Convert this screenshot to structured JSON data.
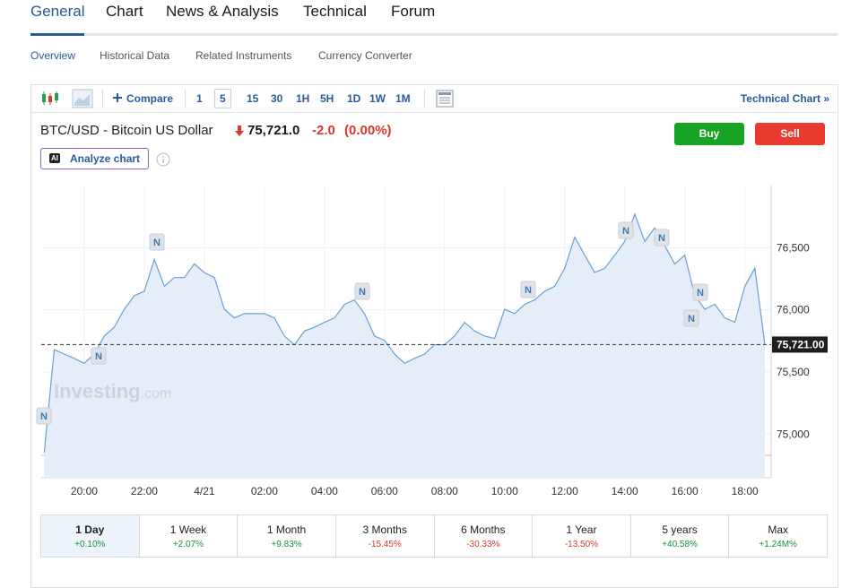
{
  "tabs": [
    "General",
    "Chart",
    "News & Analysis",
    "Technical",
    "Forum"
  ],
  "subtabs": [
    "Overview",
    "Historical Data",
    "Related Instruments",
    "Currency Converter"
  ],
  "toolbar": {
    "compare": "Compare",
    "intervals": [
      "1",
      "5",
      "15",
      "30",
      "1H",
      "5H",
      "1D",
      "1W",
      "1M"
    ],
    "technical_chart": "Technical Chart »"
  },
  "quote": {
    "name": "BTC/USD - Bitcoin US Dollar",
    "price": "75,721.0",
    "change": "-2.0",
    "change_pct": "(0.00%)"
  },
  "buttons": {
    "buy": "Buy",
    "sell": "Sell",
    "analyze": "Analyze chart",
    "ai_badge": "AI"
  },
  "chart_data": {
    "type": "line",
    "categories": [
      null,
      null,
      null,
      null,
      "20:00",
      null,
      null,
      null,
      null,
      null,
      "22:00",
      null,
      null,
      null,
      null,
      null,
      "4/21",
      null,
      null,
      null,
      null,
      null,
      "02:00",
      null,
      null,
      null,
      null,
      null,
      "04:00",
      null,
      null,
      null,
      null,
      null,
      "06:00",
      null,
      null,
      null,
      null,
      null,
      "08:00",
      null,
      null,
      null,
      null,
      null,
      "10:00",
      null,
      null,
      null,
      null,
      null,
      "12:00",
      null,
      null,
      null,
      null,
      null,
      "14:00",
      null,
      null,
      null,
      null,
      null,
      "16:00",
      null,
      null,
      null,
      null,
      null,
      "18:00",
      null,
      null
    ],
    "series": [
      {
        "color": "#6a9fd4",
        "values": [
          74850,
          75680,
          75645,
          75610,
          75570,
          75645,
          75790,
          75860,
          76005,
          76115,
          76150,
          76405,
          76190,
          76260,
          76260,
          76370,
          76300,
          76260,
          76005,
          75935,
          75970,
          75970,
          75970,
          75935,
          75790,
          75720,
          75830,
          75860,
          75900,
          75935,
          76045,
          76080,
          75970,
          75790,
          75755,
          75645,
          75570,
          75610,
          75645,
          75720,
          75720,
          75790,
          75900,
          75830,
          75790,
          75770,
          76005,
          75970,
          76045,
          76080,
          76150,
          76190,
          76335,
          76585,
          76440,
          76300,
          76335,
          76440,
          76550,
          76770,
          76550,
          76660,
          76515,
          76370,
          76440,
          76115,
          76005,
          76045,
          75935,
          75900,
          76190,
          76335,
          75721
        ]
      }
    ],
    "fill_color": "#e5eef8",
    "ylim": [
      74650,
      77000
    ],
    "yticks": [
      {
        "value": 75000,
        "label": "75,000"
      },
      {
        "value": 75500,
        "label": "75,500"
      },
      {
        "value": 76000,
        "label": "76,000"
      },
      {
        "value": 76500,
        "label": "76,500"
      }
    ],
    "grid": true,
    "last_price": {
      "value": 75721,
      "label": "75,721.00"
    },
    "reference_line": 74830,
    "news_marker": "N",
    "watermark": "Investing",
    "watermark_suffix": ".com"
  },
  "periods": [
    {
      "label": "1 Day",
      "change": "+0.10%"
    },
    {
      "label": "1 Week",
      "change": "+2.07%"
    },
    {
      "label": "1 Month",
      "change": "+9.83%"
    },
    {
      "label": "3 Months",
      "change": "-15.45%"
    },
    {
      "label": "6 Months",
      "change": "-30.33%"
    },
    {
      "label": "1 Year",
      "change": "-13.50%"
    },
    {
      "label": "5 years",
      "change": "+40.58%"
    },
    {
      "label": "Max",
      "change": "+1.24M%"
    }
  ]
}
